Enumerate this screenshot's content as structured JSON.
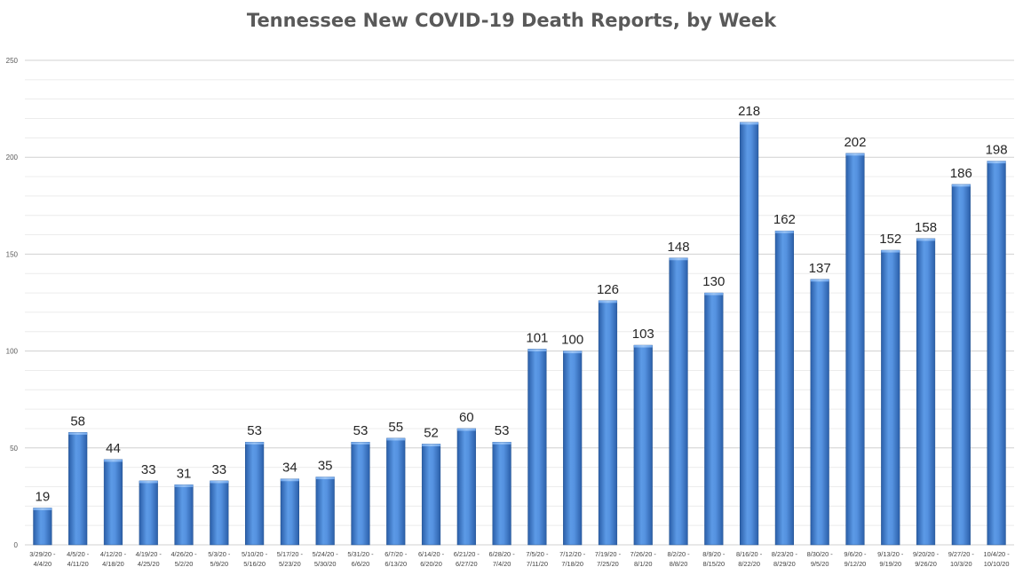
{
  "chart_data": {
    "type": "bar",
    "title": "Tennessee New COVID-19 Death Reports, by Week",
    "xlabel": "",
    "ylabel": "",
    "ylim": [
      0,
      250
    ],
    "yticks": [
      0,
      50,
      100,
      150,
      200,
      250
    ],
    "grid": true,
    "legend": "none",
    "bar_color": "#3f7fd1",
    "categories": [
      [
        "3/29/20 -",
        "4/4/20"
      ],
      [
        "4/5/20 -",
        "4/11/20"
      ],
      [
        "4/12/20 -",
        "4/18/20"
      ],
      [
        "4/19/20 -",
        "4/25/20"
      ],
      [
        "4/26/20 -",
        "5/2/20"
      ],
      [
        "5/3/20 -",
        "5/9/20"
      ],
      [
        "5/10/20 -",
        "5/16/20"
      ],
      [
        "5/17/20 -",
        "5/23/20"
      ],
      [
        "5/24/20 -",
        "5/30/20"
      ],
      [
        "5/31/20 -",
        "6/6/20"
      ],
      [
        "6/7/20 -",
        "6/13/20"
      ],
      [
        "6/14/20 -",
        "6/20/20"
      ],
      [
        "6/21/20 -",
        "6/27/20"
      ],
      [
        "6/28/20 -",
        "7/4/20"
      ],
      [
        "7/5/20 -",
        "7/11/20"
      ],
      [
        "7/12/20 -",
        "7/18/20"
      ],
      [
        "7/19/20 -",
        "7/25/20"
      ],
      [
        "7/26/20 -",
        "8/1/20"
      ],
      [
        "8/2/20 -",
        "8/8/20"
      ],
      [
        "8/9/20 -",
        "8/15/20"
      ],
      [
        "8/16/20 -",
        "8/22/20"
      ],
      [
        "8/23/20 -",
        "8/29/20"
      ],
      [
        "8/30/20 -",
        "9/5/20"
      ],
      [
        "9/6/20 -",
        "9/12/20"
      ],
      [
        "9/13/20 -",
        "9/19/20"
      ],
      [
        "9/20/20 -",
        "9/26/20"
      ],
      [
        "9/27/20 -",
        "10/3/20"
      ],
      [
        "10/4/20 -",
        "10/10/20"
      ]
    ],
    "values": [
      19,
      58,
      44,
      33,
      31,
      33,
      53,
      34,
      35,
      53,
      55,
      52,
      60,
      53,
      101,
      100,
      126,
      103,
      148,
      130,
      218,
      162,
      137,
      202,
      152,
      158,
      186,
      198
    ]
  }
}
